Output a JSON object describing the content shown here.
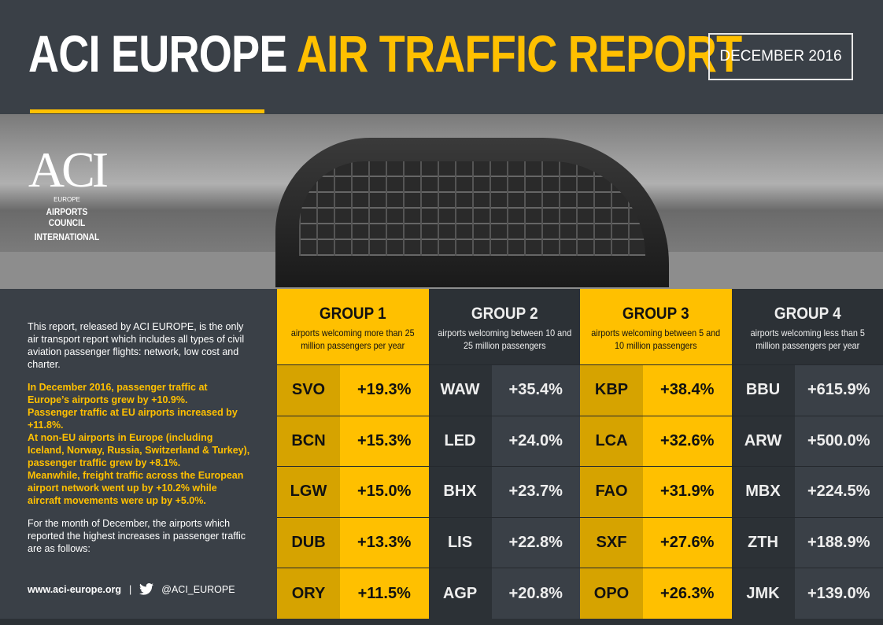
{
  "header": {
    "title_white": "ACI EUROPE",
    "title_yellow": "AIR TRAFFIC REPORT",
    "date": "DECEMBER 2016"
  },
  "logo": {
    "mark": "ACI",
    "region": "EUROPE",
    "name_line1": "AIRPORTS COUNCIL",
    "name_line2": "INTERNATIONAL"
  },
  "intro": {
    "p1": "This report, released by ACI EUROPE, is the only air transport report which includes all types of civil aviation passenger flights: network, low cost and charter.",
    "highlight": [
      "In December 2016, passenger traffic at Europe’s airports grew by +10.9%.",
      "Passenger traffic at EU airports increased by +11.8%.",
      "At non-EU airports in Europe (including Iceland, Norway, Russia, Switzerland & Turkey), passenger traffic grew by +8.1%.",
      "Meanwhile, freight traffic across the European airport network went up by +10.2% while aircraft movements were up by +5.0%."
    ],
    "p3": "For the month of December, the airports which reported the highest increases in passenger traffic are as follows:"
  },
  "footer": {
    "website": "www.aci-europe.org",
    "separator": "|",
    "twitter": "@ACI_EUROPE",
    "icon": "twitter-icon"
  },
  "groups": [
    {
      "title": "GROUP 1",
      "desc": "airports welcoming more than 25 million passengers per year",
      "rows": [
        [
          "SVO",
          "+19.3%"
        ],
        [
          "BCN",
          "+15.3%"
        ],
        [
          "LGW",
          "+15.0%"
        ],
        [
          "DUB",
          "+13.3%"
        ],
        [
          "ORY",
          "+11.5%"
        ]
      ]
    },
    {
      "title": "GROUP 2",
      "desc": "airports welcoming between 10 and 25 million passengers",
      "rows": [
        [
          "WAW",
          "+35.4%"
        ],
        [
          "LED",
          "+24.0%"
        ],
        [
          "BHX",
          "+23.7%"
        ],
        [
          "LIS",
          "+22.8%"
        ],
        [
          "AGP",
          "+20.8%"
        ]
      ]
    },
    {
      "title": "GROUP 3",
      "desc": "airports welcoming between 5 and 10 million passengers",
      "rows": [
        [
          "KBP",
          "+38.4%"
        ],
        [
          "LCA",
          "+32.6%"
        ],
        [
          "FAO",
          "+31.9%"
        ],
        [
          "SXF",
          "+27.6%"
        ],
        [
          "OPO",
          "+26.3%"
        ]
      ]
    },
    {
      "title": "GROUP 4",
      "desc": "airports welcoming less than 5 million passengers per year",
      "rows": [
        [
          "BBU",
          "+615.9%"
        ],
        [
          "ARW",
          "+500.0%"
        ],
        [
          "MBX",
          "+224.5%"
        ],
        [
          "ZTH",
          "+188.9%"
        ],
        [
          "JMK",
          "+139.0%"
        ]
      ]
    }
  ],
  "colors": {
    "accent": "#ffc000",
    "dark": "#2c3136",
    "background": "#3a4047"
  }
}
